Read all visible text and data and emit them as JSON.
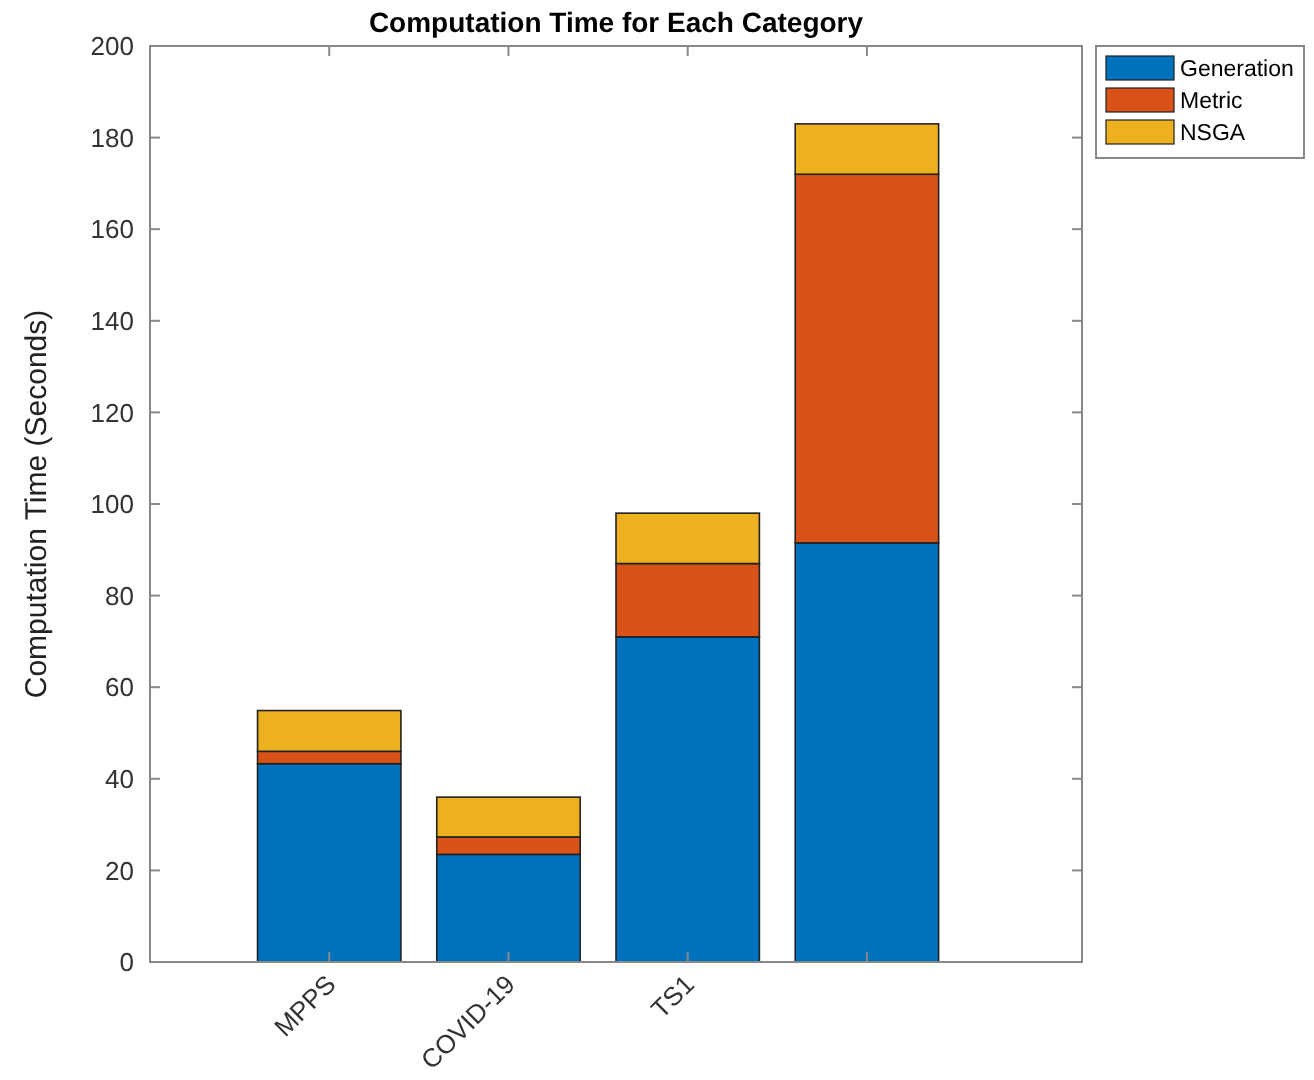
{
  "chart_data": {
    "type": "bar",
    "title": "Computation Time for Each Category",
    "ylabel": "Computation Time (Seconds)",
    "categories": [
      "MPPS",
      "COVID-19",
      "TS1",
      null
    ],
    "stacked": true,
    "legend": "top right",
    "ylim": [
      0,
      200
    ],
    "yticks": [
      0,
      20,
      40,
      60,
      80,
      100,
      120,
      140,
      160,
      180,
      200
    ],
    "series": [
      {
        "name": "Generation",
        "color": "#0072bd",
        "values": [
          43.3,
          23.5,
          71,
          91.5
        ]
      },
      {
        "name": "Metric",
        "color": "#d95319",
        "values": [
          2.7,
          3.8,
          16,
          80.5
        ]
      },
      {
        "name": "NSGA",
        "color": "#edb120",
        "values": [
          8.9,
          8.7,
          11,
          11
        ]
      }
    ]
  }
}
